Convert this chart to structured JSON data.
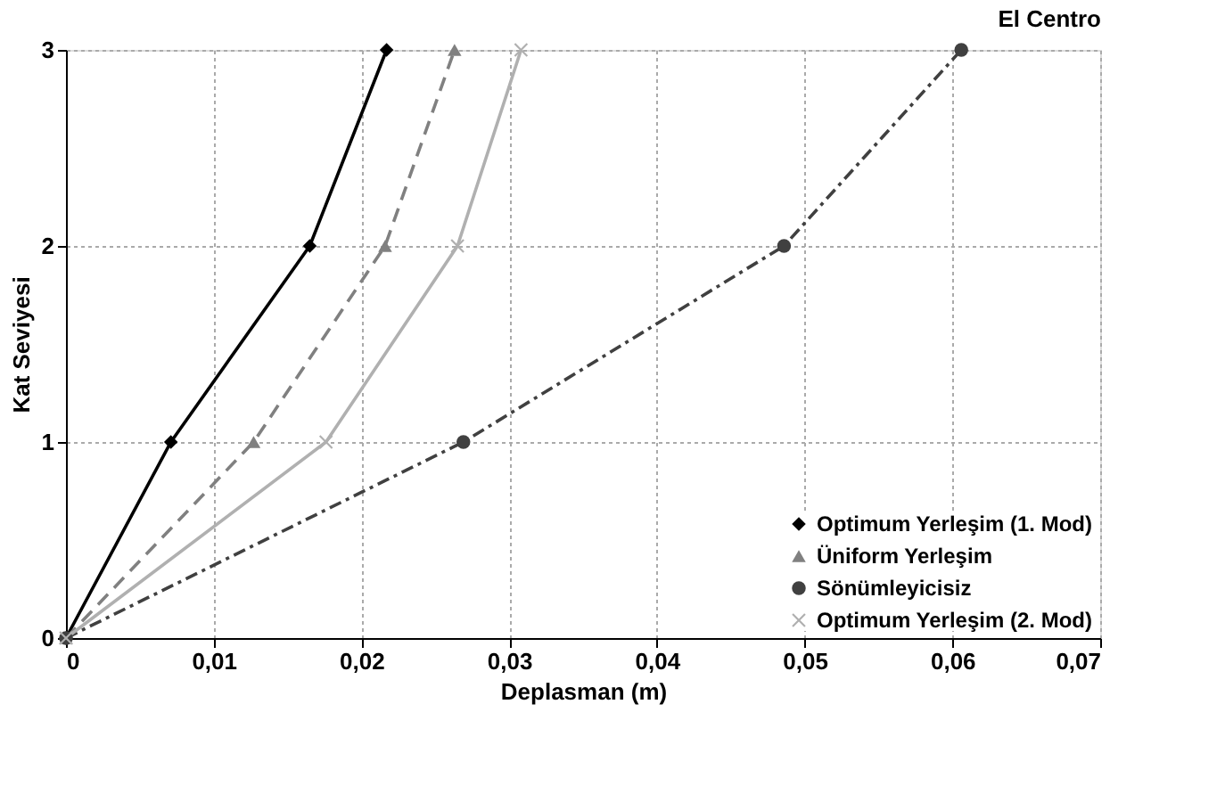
{
  "chart_data": {
    "type": "line",
    "title": "El Centro",
    "xlabel": "Deplasman (m)",
    "ylabel": "Kat Seviyesi",
    "xlim": [
      0,
      0.07
    ],
    "ylim": [
      0,
      3
    ],
    "xticks": [
      0,
      {
        "value": 0.01,
        "label": "0,01"
      },
      {
        "value": 0.02,
        "label": "0,02"
      },
      {
        "value": 0.03,
        "label": "0,03"
      },
      {
        "value": 0.04,
        "label": "0,04"
      },
      {
        "value": 0.05,
        "label": "0,05"
      },
      {
        "value": 0.06,
        "label": "0,06"
      },
      {
        "value": 0.07,
        "label": "0,07"
      }
    ],
    "yticks": [
      0,
      1,
      2,
      3
    ],
    "grid": true,
    "legend": "bottom right",
    "series": [
      {
        "name": "Optimum Yerleşim (1. Mod)",
        "color": "#000000",
        "marker": "diamond",
        "line_style": "solid",
        "x": [
          0,
          0.0071,
          0.0165,
          0.0217
        ],
        "values": [
          0,
          1,
          2,
          3
        ]
      },
      {
        "name": "Üniform Yerleşim",
        "color": "#808080",
        "marker": "triangle",
        "line_style": "dashed",
        "x": [
          0,
          0.0127,
          0.0216,
          0.0263
        ],
        "values": [
          0,
          1,
          2,
          3
        ]
      },
      {
        "name": "Sönümleyicisiz",
        "color": "#404040",
        "marker": "circle",
        "line_style": "dashdot",
        "x": [
          0,
          0.0269,
          0.0486,
          0.0606
        ],
        "values": [
          0,
          1,
          2,
          3
        ]
      },
      {
        "name": "Optimum Yerleşim (2. Mod)",
        "color": "#b0b0b0",
        "marker": "cross",
        "line_style": "solid",
        "x": [
          0,
          0.0176,
          0.0265,
          0.0308
        ],
        "values": [
          0,
          1,
          2,
          3
        ]
      }
    ]
  }
}
